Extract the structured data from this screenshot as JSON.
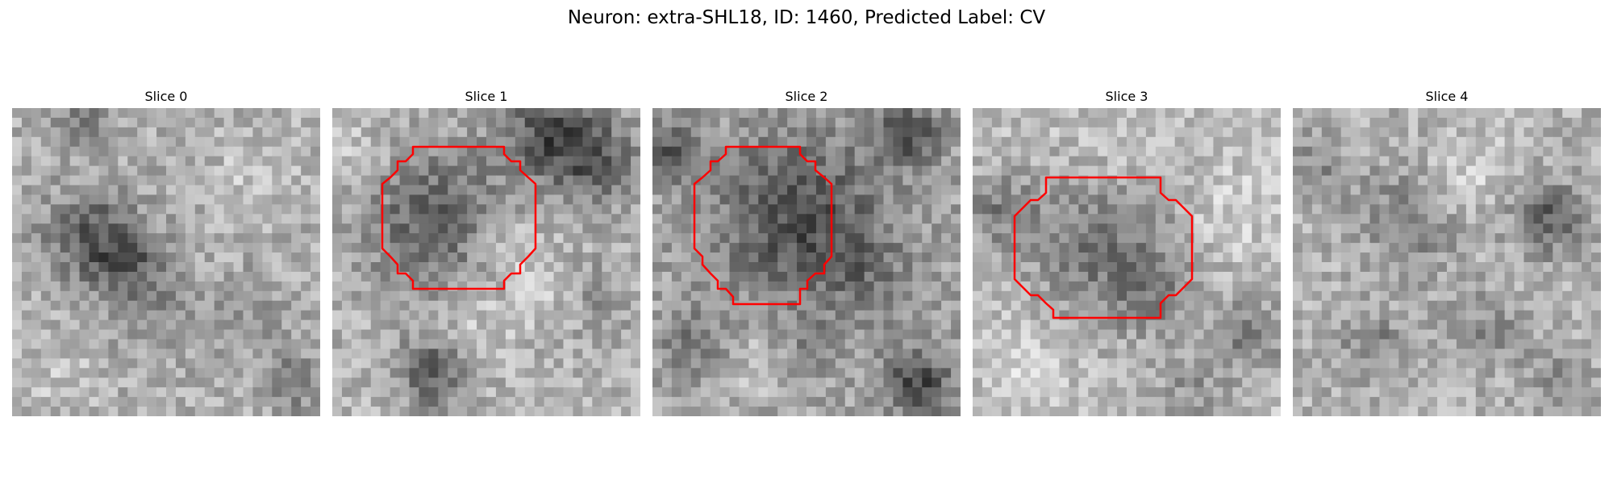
{
  "figure": {
    "title": "Neuron: extra-SHL18, ID: 1460, Predicted Label: CV"
  },
  "panels": [
    {
      "label": "Slice 0",
      "has_outline": false
    },
    {
      "label": "Slice 1",
      "has_outline": true
    },
    {
      "label": "Slice 2",
      "has_outline": true
    },
    {
      "label": "Slice 3",
      "has_outline": true
    },
    {
      "label": "Slice 4",
      "has_outline": false
    }
  ],
  "colors": {
    "outline": "#ff0000",
    "background": "#ffffff"
  }
}
